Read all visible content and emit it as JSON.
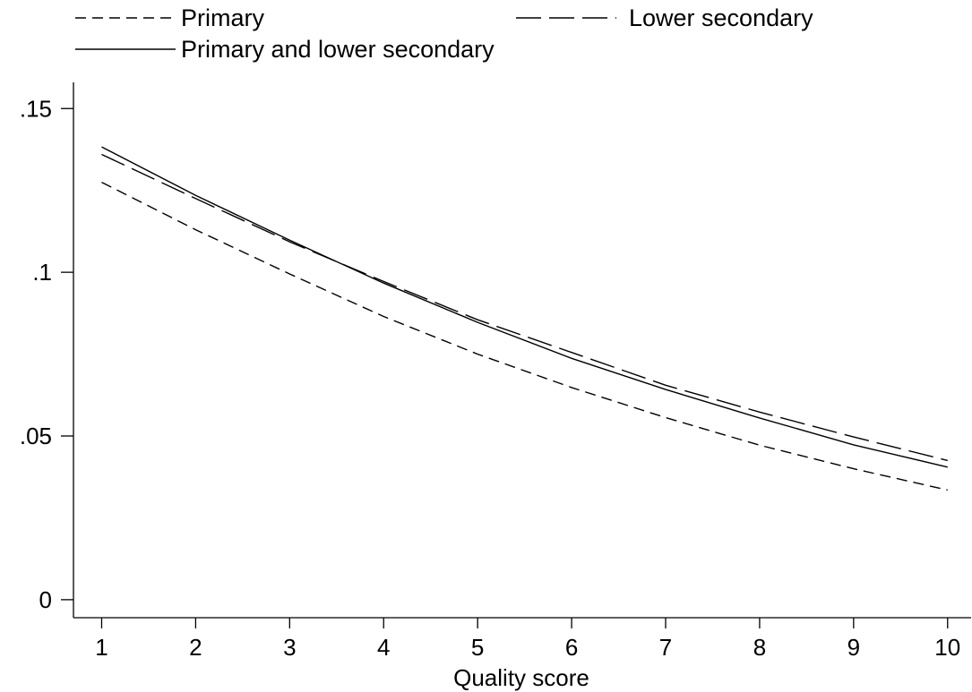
{
  "chart_data": {
    "type": "line",
    "title": "",
    "xlabel": "Quality score",
    "ylabel": "",
    "x": [
      1,
      2,
      3,
      4,
      5,
      6,
      7,
      8,
      9,
      10
    ],
    "xlim": [
      0.7,
      10.25
    ],
    "ylim": [
      -0.0055,
      0.158
    ],
    "xticks": [
      1,
      2,
      3,
      4,
      5,
      6,
      7,
      8,
      9,
      10
    ],
    "xtick_labels": [
      "1",
      "2",
      "3",
      "4",
      "5",
      "6",
      "7",
      "8",
      "9",
      "10"
    ],
    "yticks": [
      0,
      0.05,
      0.1,
      0.15
    ],
    "ytick_labels": [
      "0",
      ".05",
      ".1",
      ".15"
    ],
    "grid": false,
    "legend_position": "top",
    "series": [
      {
        "name": "Primary",
        "dash": "short-dash",
        "values": [
          0.1275,
          0.113,
          0.0995,
          0.0865,
          0.075,
          0.0648,
          0.0556,
          0.0472,
          0.04,
          0.0335
        ]
      },
      {
        "name": "Lower secondary",
        "dash": "long-dash",
        "values": [
          0.136,
          0.1225,
          0.1093,
          0.0972,
          0.0855,
          0.0755,
          0.0655,
          0.0573,
          0.0497,
          0.0425
        ]
      },
      {
        "name": "Primary and lower secondary",
        "dash": "solid",
        "values": [
          0.1383,
          0.1235,
          0.1098,
          0.0967,
          0.0847,
          0.0737,
          0.0642,
          0.0555,
          0.0473,
          0.0405
        ]
      }
    ],
    "colors": {
      "line": "#000000",
      "axis": "#000000",
      "background": "#ffffff"
    }
  }
}
